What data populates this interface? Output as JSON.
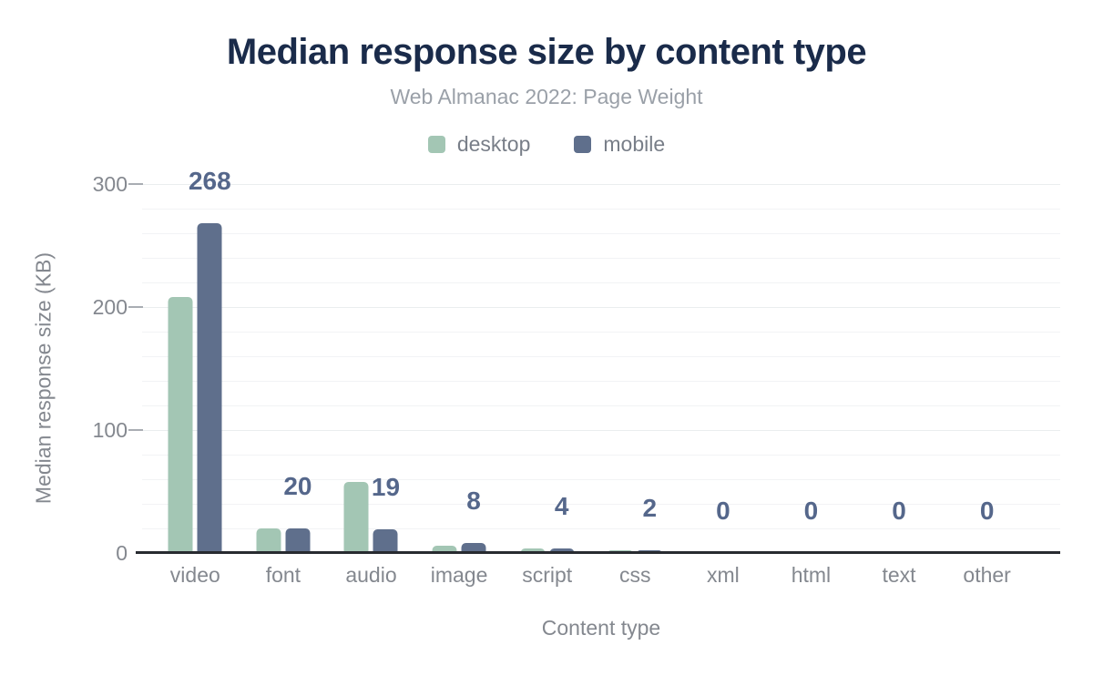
{
  "header": {
    "title": "Median response size by content type",
    "subtitle": "Web Almanac 2022: Page Weight"
  },
  "chart_data": {
    "type": "bar",
    "title": "Median response size by content type",
    "subtitle": "Web Almanac 2022: Page Weight",
    "categories": [
      "video",
      "font",
      "audio",
      "image",
      "script",
      "css",
      "xml",
      "html",
      "text",
      "other"
    ],
    "series": [
      {
        "name": "desktop",
        "color": "#a3c6b4",
        "values": [
          208,
          20,
          58,
          6,
          4,
          2,
          0,
          0,
          0,
          0
        ]
      },
      {
        "name": "mobile",
        "color": "#5f6f8c",
        "values": [
          268,
          20,
          19,
          8,
          4,
          2,
          0,
          0,
          0,
          0
        ]
      }
    ],
    "data_labels": {
      "series": "mobile",
      "values": [
        "268",
        "20",
        "19",
        "8",
        "4",
        "2",
        "0",
        "0",
        "0",
        "0"
      ]
    },
    "xlabel": "Content type",
    "ylabel": "Median response size (KB)",
    "ylim": [
      0,
      300
    ],
    "yticks": [
      0,
      100,
      200,
      300
    ],
    "minor_gridline_step": 20,
    "grid": "horizontal",
    "legend_position": "top"
  },
  "colors": {
    "background": "#ffffff",
    "title_text": "#1a2b4a",
    "subtitle_text": "#9aa0a8",
    "axis_text": "#84888f",
    "legend_text": "#787e88",
    "data_label_text": "#55678b",
    "desktop_bar": "#a3c6b4",
    "mobile_bar": "#5f6f8c",
    "gridline_minor": "#f2f3f5",
    "gridline_major": "#eaedef",
    "axis_line": "#282b30",
    "tick_dash": "#a9adb3"
  }
}
